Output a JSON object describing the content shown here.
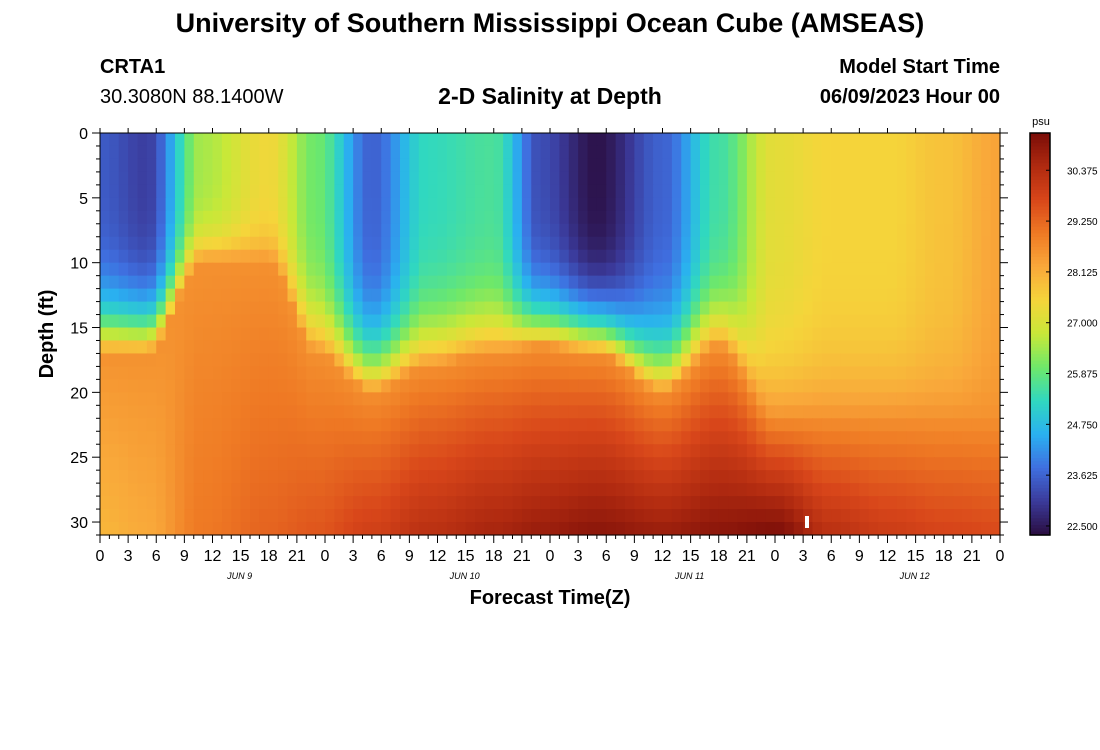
{
  "header": {
    "title": "University of Southern Mississippi Ocean Cube (AMSEAS)",
    "station_id": "CRTA1",
    "station_coords": "30.3080N  88.1400W",
    "subtitle": "2-D Salinity at Depth",
    "model_start_label": "Model Start Time",
    "model_start_value": "06/09/2023 Hour 00"
  },
  "footer": {
    "title_repeat": "University of Southern Mississippi Ocean Cube (AMSEAS)"
  },
  "chart_data": {
    "type": "heatmap",
    "title": "2-D Salinity at Depth",
    "xlabel": "Forecast Time(Z)",
    "ylabel": "Depth (ft)",
    "x_tick_labels": [
      "0",
      "3",
      "6",
      "9",
      "12",
      "15",
      "18",
      "21",
      "0",
      "3",
      "6",
      "9",
      "12",
      "15",
      "18",
      "21",
      "0",
      "3",
      "6",
      "9",
      "12",
      "15",
      "18",
      "21",
      "0",
      "3",
      "6",
      "9",
      "12",
      "15",
      "18",
      "21",
      "0"
    ],
    "day_labels": [
      {
        "hour": 15,
        "label": "JUN 9"
      },
      {
        "hour": 39,
        "label": "JUN 10"
      },
      {
        "hour": 63,
        "label": "JUN 11"
      },
      {
        "hour": 87,
        "label": "JUN 12"
      }
    ],
    "xlim": [
      0,
      96
    ],
    "ylim": [
      0,
      31
    ],
    "y_ticks": [
      0,
      5,
      10,
      15,
      20,
      25,
      30
    ],
    "y_inverted": true,
    "colorbar": {
      "unit": "psu",
      "range": [
        22.3,
        31.2
      ],
      "ticks": [
        "30.375",
        "29.250",
        "28.125",
        "27.000",
        "25.875",
        "24.750",
        "23.625",
        "22.500"
      ],
      "tick_values": [
        30.375,
        29.25,
        28.125,
        27.0,
        25.875,
        24.75,
        23.625,
        22.5
      ],
      "colors": [
        "#2a0d40",
        "#3b3a9a",
        "#3f6fe0",
        "#2ab0f0",
        "#30d8c0",
        "#6ee86a",
        "#c8e838",
        "#f5d53a",
        "#f9a83a",
        "#ef7a24",
        "#d8461a",
        "#b02a10",
        "#7a0d08"
      ]
    },
    "contour_model": {
      "times": [
        0,
        5,
        11,
        18,
        23,
        29,
        35,
        42,
        47,
        53,
        60,
        66,
        72,
        78,
        84,
        90,
        96
      ],
      "surface_salinity": [
        23.5,
        23.1,
        26.5,
        27.4,
        26.0,
        23.6,
        25.3,
        25.6,
        23.3,
        22.4,
        23.6,
        25.5,
        27.2,
        27.5,
        27.5,
        27.8,
        28.3
      ],
      "halocline_depth_ft": [
        17,
        17,
        10,
        10,
        17,
        20,
        18,
        17,
        16.5,
        17,
        20,
        16.5,
        22,
        22,
        22,
        22,
        22
      ],
      "bottom_salinity": [
        28.0,
        28.2,
        29.0,
        29.3,
        29.5,
        29.9,
        30.3,
        30.6,
        30.8,
        31.0,
        30.8,
        31.0,
        31.2,
        30.3,
        30.0,
        29.8,
        29.7
      ]
    }
  }
}
